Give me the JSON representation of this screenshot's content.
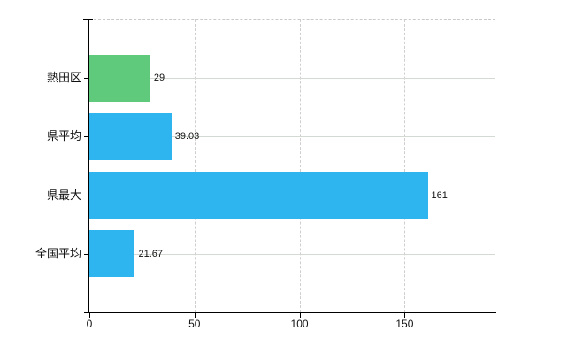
{
  "chart_data": {
    "type": "bar",
    "orientation": "horizontal",
    "title": "",
    "xlabel": "",
    "ylabel": "",
    "categories": [
      "熱田区",
      "県平均",
      "県最大",
      "全国平均"
    ],
    "values": [
      29,
      39.03,
      161,
      21.67
    ],
    "value_labels": [
      "29",
      "39.03",
      "161",
      "21.67"
    ],
    "bar_colors": [
      "#5fca7c",
      "#2eb4ef",
      "#2eb4ef",
      "#2eb4ef"
    ],
    "x_ticks": [
      0,
      50,
      100,
      150
    ],
    "x_tick_labels": [
      "0",
      "50",
      "100",
      "150"
    ],
    "x_axis_min": 0,
    "x_axis_max": 193.2,
    "grid": true,
    "legend": false
  },
  "colors": {
    "bar_green": "#5fca7c",
    "bar_blue": "#2eb4ef",
    "axis": "#000000",
    "row_gridline": "#d3d9d3",
    "tick_gridline_dashed": "#d0cdd0",
    "top_border_dashed": "#c9c9c9",
    "text": "#111111"
  }
}
